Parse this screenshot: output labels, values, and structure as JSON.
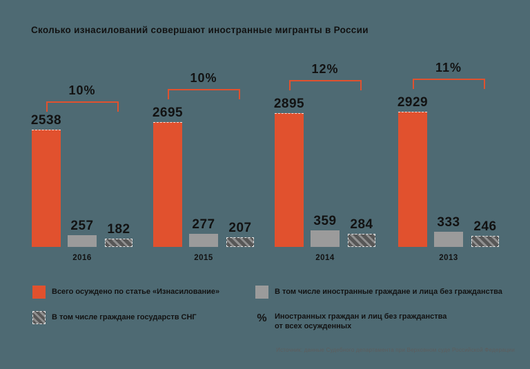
{
  "title": "Сколько изнасилований совершают иностранные мигранты в России",
  "colors": {
    "background": "#4e6a73",
    "total_bar": "#e1512e",
    "foreign_bar": "#9b9b9b",
    "cis_bar_base": "#575757",
    "cis_bar_stripe": "#909090",
    "text": "#121212",
    "source_text": "#5d5d5d"
  },
  "chart_data": {
    "type": "bar",
    "title": "Сколько изнасилований совершают иностранные мигранты в России",
    "categories": [
      "2016",
      "2015",
      "2014",
      "2013"
    ],
    "series": [
      {
        "name": "Всего осуждено по статье «Изнасилование»",
        "values": [
          2538,
          2695,
          2895,
          2929
        ]
      },
      {
        "name": "В том числе иностранные граждане и лица без гражданства",
        "values": [
          257,
          277,
          359,
          333
        ]
      },
      {
        "name": "В том числе граждане государств СНГ",
        "values": [
          182,
          207,
          284,
          246
        ]
      }
    ],
    "percent_labels": [
      "10%",
      "10%",
      "12%",
      "11%"
    ],
    "percent_meaning": "Иностранных граждан и лиц без гражданства от всех осужденных",
    "xlabel": "",
    "ylabel": "",
    "grid": false,
    "axes_visible": false,
    "legend_position": "bottom",
    "value_labels_shown": true
  },
  "legend": {
    "total": "Всего осуждено по статье «Изнасилование»",
    "foreign": "В том числе иностранные граждане и лица без гражданства",
    "cis": "В том числе граждане государств СНГ",
    "percent_symbol": "%",
    "percent_line1": "Иностранных граждан и лиц без гражданства",
    "percent_line2": "от всех осужденных"
  },
  "source": "Источник: данные Судебного департамента при Верховном суде Российской Федерации"
}
